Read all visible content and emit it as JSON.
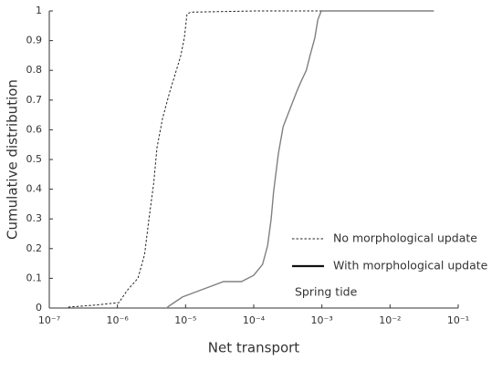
{
  "chart_data": {
    "type": "line",
    "log_x": true,
    "xlabel": "Net transport",
    "ylabel": "Cumulative distribution",
    "xlim": [
      1e-07,
      0.1
    ],
    "xticks": [
      {
        "value": 1e-07,
        "label": "10⁻⁷"
      },
      {
        "value": 1e-06,
        "label": "10⁻⁶"
      },
      {
        "value": 1e-05,
        "label": "10⁻⁵"
      },
      {
        "value": 0.0001,
        "label": "10⁻⁴"
      },
      {
        "value": 0.001,
        "label": "10⁻³"
      },
      {
        "value": 0.01,
        "label": "10⁻²"
      },
      {
        "value": 0.1,
        "label": "10⁻¹"
      }
    ],
    "ylim": [
      0,
      1
    ],
    "yticks": [
      0,
      0.1,
      0.2,
      0.3,
      0.4,
      0.5,
      0.6,
      0.7,
      0.8,
      0.9,
      1
    ],
    "series": [
      {
        "name": "No morphological update",
        "color": "#222222",
        "dash": true,
        "x": [
          1.9e-07,
          4.8e-07,
          1.05e-06,
          1.4e-06,
          2e-06,
          2.5e-06,
          2.9e-06,
          3.4e-06,
          3.8e-06,
          4.6e-06,
          5.9e-06,
          7.1e-06,
          8.5e-06,
          9.6e-06,
          1.05e-05,
          1.2e-05,
          0.000107,
          0.017
        ],
        "values": [
          0.003,
          0.01,
          0.018,
          0.06,
          0.1,
          0.18,
          0.3,
          0.42,
          0.54,
          0.64,
          0.73,
          0.79,
          0.85,
          0.91,
          0.99,
          0.996,
          1,
          1
        ]
      },
      {
        "name": "With morphological update",
        "color": "#808080",
        "dash": false,
        "x": [
          5.4e-06,
          9e-06,
          1.66e-05,
          3.6e-05,
          6.6e-05,
          0.0001,
          0.000135,
          0.00016,
          0.00018,
          0.000195,
          0.00023,
          0.00027,
          0.00034,
          0.00043,
          0.00049,
          0.00059,
          0.00067,
          0.00079,
          0.00087,
          0.00098,
          0.044
        ],
        "values": [
          0.003,
          0.037,
          0.06,
          0.089,
          0.089,
          0.11,
          0.147,
          0.21,
          0.3,
          0.39,
          0.52,
          0.61,
          0.67,
          0.73,
          0.76,
          0.8,
          0.85,
          0.91,
          0.97,
          1,
          1
        ]
      }
    ],
    "annotation": "Spring tide"
  }
}
